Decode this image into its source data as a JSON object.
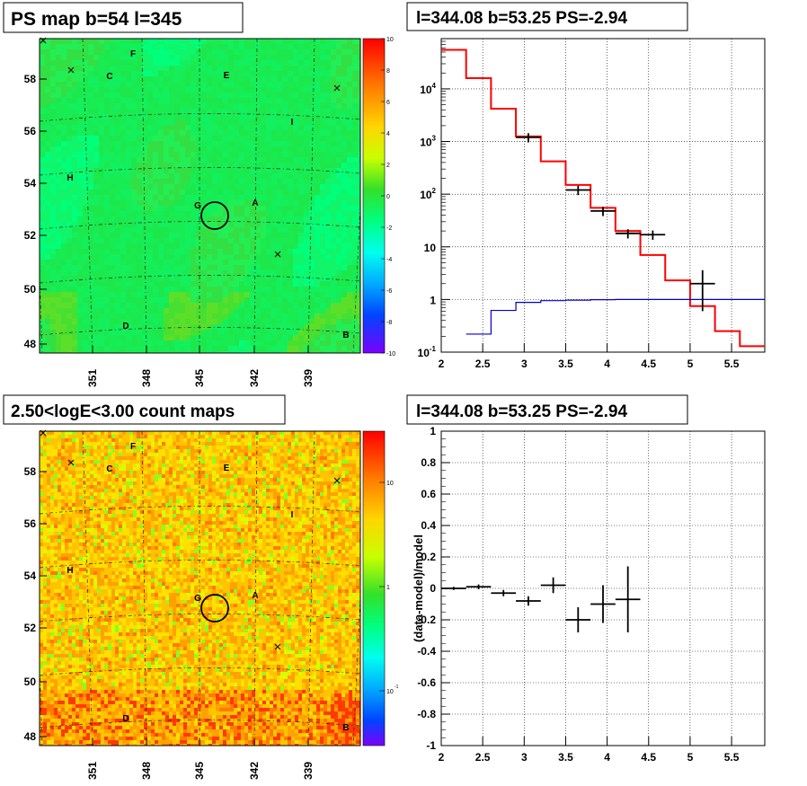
{
  "panels": {
    "tl_title": "PS map b=54 l=345",
    "tr_title": "l=344.08 b=53.25 PS=-2.94",
    "bl_title": "2.50<logE<3.00 count maps",
    "br_title": "l=344.08 b=53.25 PS=-2.94"
  },
  "map_axes": {
    "lat_ticks": [
      "58",
      "56",
      "54",
      "52",
      "50",
      "48"
    ],
    "lon_ticks": [
      "351",
      "348",
      "345",
      "342",
      "339"
    ]
  },
  "sources": [
    "A",
    "B",
    "C",
    "D",
    "E",
    "F",
    "G",
    "H",
    "I"
  ],
  "colorbar_tl": {
    "labels": [
      "10",
      "8",
      "6",
      "4",
      "2",
      "0",
      "-2",
      "-4",
      "-6",
      "-8",
      "-10"
    ]
  },
  "colorbar_bl": {
    "labels": [
      "10",
      "1",
      "10"
    ],
    "exp": "-1"
  },
  "chart_data": [
    {
      "type": "line",
      "title": "l=344.08 b=53.25 PS=-2.94",
      "xlim": [
        2,
        5.9
      ],
      "ylim": [
        0.1,
        90000
      ],
      "log_y": true,
      "grid": true,
      "xticks": [
        "2",
        "2.5",
        "3",
        "3.5",
        "4",
        "4.5",
        "5",
        "5.5"
      ],
      "yticks": [
        "10^-1",
        "1",
        "10",
        "10^2",
        "10^3",
        "10^4"
      ],
      "series": [
        {
          "color": "#ff0000",
          "style": "step",
          "edges": [
            2.0,
            2.3,
            2.6,
            2.9,
            3.2,
            3.5,
            3.8,
            4.1,
            4.4,
            4.7,
            5.0,
            5.3,
            5.6,
            5.9
          ],
          "values": [
            55000,
            16000,
            4200,
            1250,
            420,
            150,
            55,
            20,
            7,
            2.3,
            0.75,
            0.25,
            0.13
          ]
        },
        {
          "color": "#0000cc",
          "style": "step",
          "edges": [
            2.3,
            2.6,
            2.9,
            3.2,
            3.5,
            3.8,
            4.1,
            5.9
          ],
          "values": [
            0.22,
            0.62,
            0.88,
            0.95,
            0.97,
            0.99,
            1.0
          ]
        },
        {
          "color": "#000000",
          "style": "errorbar",
          "points": [
            {
              "x": 3.05,
              "y": 1200,
              "xerr": 0.15
            },
            {
              "x": 3.65,
              "y": 120,
              "xerr": 0.15
            },
            {
              "x": 3.95,
              "y": 48,
              "xerr": 0.15
            },
            {
              "x": 4.25,
              "y": 18,
              "xerr": 0.15
            },
            {
              "x": 4.55,
              "y": 17,
              "xerr": 0.15
            },
            {
              "x": 5.15,
              "y": 2,
              "xerr": 0.15,
              "ylo": 0.6,
              "yhi": 3.6
            }
          ]
        }
      ]
    },
    {
      "type": "scatter",
      "title": "l=344.08 b=53.25 PS=-2.94",
      "ylabel": "(data-model)/model",
      "xlim": [
        2,
        5.9
      ],
      "ylim": [
        -1,
        1
      ],
      "grid": true,
      "xticks": [
        "2",
        "2.5",
        "3",
        "3.5",
        "4",
        "4.5",
        "5",
        "5.5"
      ],
      "yticks": [
        "-1",
        "-0.8",
        "-0.6",
        "-0.4",
        "-0.2",
        "0",
        "0.2",
        "0.4",
        "0.6",
        "0.8",
        "1"
      ],
      "series": [
        {
          "color": "#000000",
          "style": "errorbar",
          "points": [
            {
              "x": 2.15,
              "y": 0.0,
              "xerr": 0.15,
              "yerr": 0.01
            },
            {
              "x": 2.45,
              "y": 0.01,
              "xerr": 0.15,
              "yerr": 0.015
            },
            {
              "x": 2.75,
              "y": -0.03,
              "xerr": 0.15,
              "yerr": 0.02
            },
            {
              "x": 3.05,
              "y": -0.08,
              "xerr": 0.15,
              "yerr": 0.03
            },
            {
              "x": 3.35,
              "y": 0.02,
              "xerr": 0.15,
              "yerr": 0.05
            },
            {
              "x": 3.65,
              "y": -0.2,
              "xerr": 0.15,
              "yerr": 0.08
            },
            {
              "x": 3.95,
              "y": -0.1,
              "xerr": 0.15,
              "yerr": 0.12
            },
            {
              "x": 4.25,
              "y": -0.07,
              "xerr": 0.15,
              "yerr": 0.21
            }
          ]
        }
      ]
    }
  ]
}
